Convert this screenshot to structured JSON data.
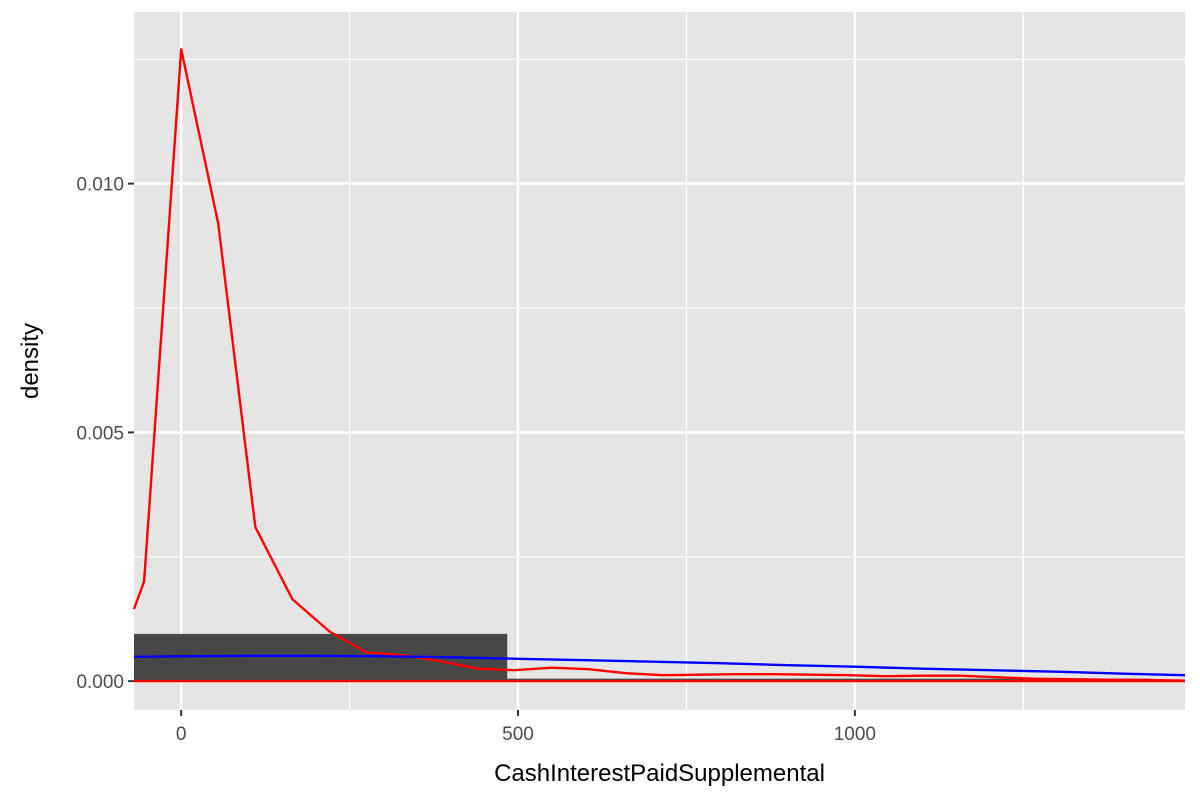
{
  "chart_data": {
    "type": "area",
    "title": "",
    "xlabel": "CashInterestPaidSupplemental",
    "ylabel": "density",
    "xlim": [
      -70,
      1490
    ],
    "ylim": [
      -0.00058,
      0.01345
    ],
    "x_ticks": [
      0,
      500,
      1000
    ],
    "x_tick_labels": [
      "0",
      "500",
      "1000"
    ],
    "y_ticks": [
      0.0,
      0.005,
      0.01
    ],
    "y_tick_labels": [
      "0.000",
      "0.005",
      "0.010"
    ],
    "grid": true,
    "legend": "none",
    "panel_background": "#e5e5e5",
    "grid_color": "#ffffff",
    "histogram": {
      "color": "#474747",
      "bins": [
        {
          "x0": -70,
          "x1": 484,
          "density": 0.00095
        },
        {
          "x0": 484,
          "x1": 1442,
          "density": 5e-05
        }
      ]
    },
    "series": [
      {
        "color": "#ff0000",
        "x": [
          -70,
          -55,
          0,
          55,
          110,
          165,
          220,
          275,
          330,
          385,
          440,
          495,
          550,
          605,
          660,
          715,
          770,
          825,
          880,
          935,
          990,
          1045,
          1100,
          1155,
          1210,
          1265,
          1320,
          1375,
          1430,
          1490
        ],
        "y": [
          0.00145,
          0.002,
          0.0127,
          0.0092,
          0.0031,
          0.00165,
          0.001,
          0.00058,
          0.00052,
          0.0004,
          0.00025,
          0.00022,
          0.00027,
          0.00024,
          0.00016,
          0.00012,
          0.00013,
          0.00014,
          0.00014,
          0.00013,
          0.00012,
          0.0001,
          0.00011,
          0.00011,
          8e-05,
          5e-05,
          4e-05,
          3e-05,
          2e-05,
          1e-05
        ]
      },
      {
        "color": "#0000ff",
        "x": [
          -70,
          0,
          100,
          200,
          300,
          400,
          500,
          600,
          700,
          800,
          900,
          1000,
          1100,
          1200,
          1300,
          1400,
          1490
        ],
        "y": [
          0.00049,
          0.0005,
          0.00051,
          0.00051,
          0.0005,
          0.00048,
          0.00045,
          0.00042,
          0.00039,
          0.00036,
          0.00032,
          0.00029,
          0.00025,
          0.00022,
          0.00019,
          0.00015,
          0.00012
        ]
      },
      {
        "color": "#ff0000",
        "x": [
          -70,
          1490
        ],
        "y": [
          0.0,
          0.0
        ]
      }
    ]
  }
}
